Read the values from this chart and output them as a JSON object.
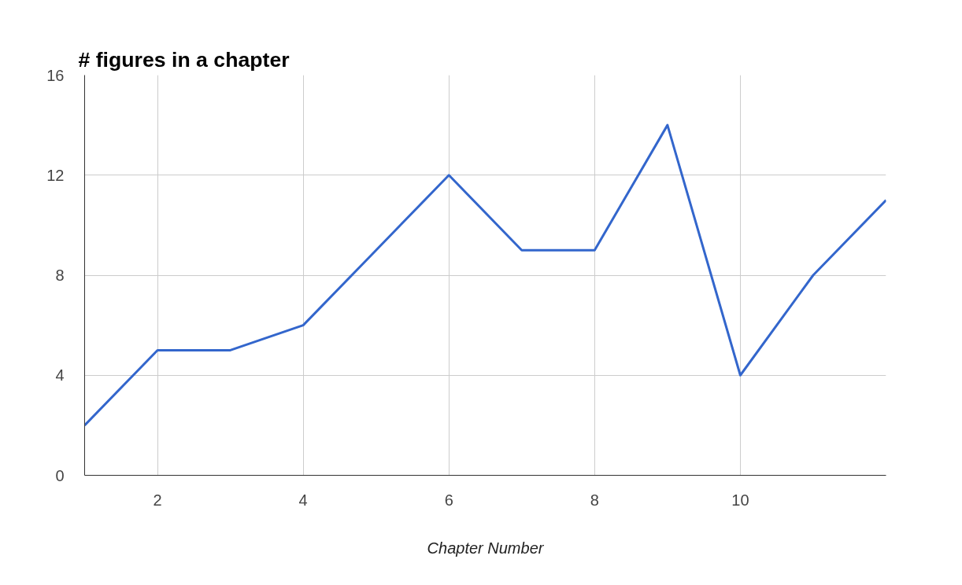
{
  "chart_data": {
    "type": "line",
    "title": "# figures in a chapter",
    "xlabel": "Chapter Number",
    "x": [
      1,
      2,
      3,
      4,
      5,
      6,
      7,
      8,
      9,
      10,
      11,
      12
    ],
    "series": [
      {
        "color": "#3366cc",
        "values": [
          2,
          5,
          5,
          6,
          9,
          12,
          9,
          9,
          14,
          4,
          8,
          11
        ]
      }
    ],
    "xlim": [
      1,
      12
    ],
    "xticks": [
      2,
      4,
      6,
      8,
      10
    ],
    "ylim": [
      0,
      16
    ],
    "yticks": [
      0,
      4,
      8,
      12,
      16
    ],
    "grid": true,
    "marker": "none",
    "line_style": "solid"
  }
}
